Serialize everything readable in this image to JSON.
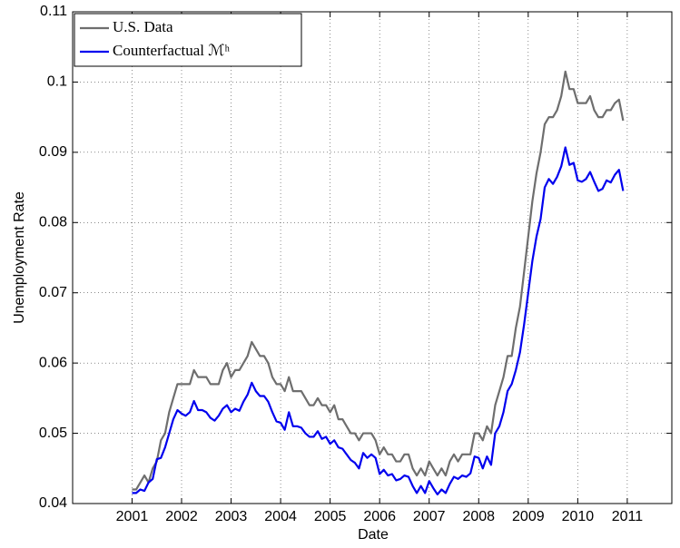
{
  "chart_data": {
    "type": "line",
    "xlabel": "Date",
    "ylabel": "Unemployment Rate",
    "x": [
      2001,
      2001.083,
      2001.167,
      2001.25,
      2001.333,
      2001.417,
      2001.5,
      2001.583,
      2001.667,
      2001.75,
      2001.833,
      2001.917,
      2002,
      2002.083,
      2002.167,
      2002.25,
      2002.333,
      2002.417,
      2002.5,
      2002.583,
      2002.667,
      2002.75,
      2002.833,
      2002.917,
      2003,
      2003.083,
      2003.167,
      2003.25,
      2003.333,
      2003.417,
      2003.5,
      2003.583,
      2003.667,
      2003.75,
      2003.833,
      2003.917,
      2004,
      2004.083,
      2004.167,
      2004.25,
      2004.333,
      2004.417,
      2004.5,
      2004.583,
      2004.667,
      2004.75,
      2004.833,
      2004.917,
      2005,
      2005.083,
      2005.167,
      2005.25,
      2005.333,
      2005.417,
      2005.5,
      2005.583,
      2005.667,
      2005.75,
      2005.833,
      2005.917,
      2006,
      2006.083,
      2006.167,
      2006.25,
      2006.333,
      2006.417,
      2006.5,
      2006.583,
      2006.667,
      2006.75,
      2006.833,
      2006.917,
      2007,
      2007.083,
      2007.167,
      2007.25,
      2007.333,
      2007.417,
      2007.5,
      2007.583,
      2007.667,
      2007.75,
      2007.833,
      2007.917,
      2008,
      2008.083,
      2008.167,
      2008.25,
      2008.333,
      2008.417,
      2008.5,
      2008.583,
      2008.667,
      2008.75,
      2008.833,
      2008.917,
      2009,
      2009.083,
      2009.167,
      2009.25,
      2009.333,
      2009.417,
      2009.5,
      2009.583,
      2009.667,
      2009.75,
      2009.833,
      2009.917,
      2010,
      2010.083,
      2010.167,
      2010.25,
      2010.333,
      2010.417,
      2010.5,
      2010.583,
      2010.667,
      2010.75,
      2010.833,
      2010.917
    ],
    "series": [
      {
        "name": "U.S. Data",
        "color": "#6e6e6e",
        "values": [
          0.042,
          0.042,
          0.043,
          0.044,
          0.043,
          0.045,
          0.046,
          0.049,
          0.05,
          0.053,
          0.055,
          0.057,
          0.057,
          0.057,
          0.057,
          0.059,
          0.058,
          0.058,
          0.058,
          0.057,
          0.057,
          0.057,
          0.059,
          0.06,
          0.058,
          0.059,
          0.059,
          0.06,
          0.061,
          0.063,
          0.062,
          0.061,
          0.061,
          0.06,
          0.058,
          0.057,
          0.057,
          0.056,
          0.058,
          0.056,
          0.056,
          0.056,
          0.055,
          0.054,
          0.054,
          0.055,
          0.054,
          0.054,
          0.053,
          0.054,
          0.052,
          0.052,
          0.051,
          0.05,
          0.05,
          0.049,
          0.05,
          0.05,
          0.05,
          0.049,
          0.047,
          0.048,
          0.047,
          0.047,
          0.046,
          0.046,
          0.047,
          0.047,
          0.045,
          0.044,
          0.045,
          0.044,
          0.046,
          0.045,
          0.044,
          0.045,
          0.044,
          0.046,
          0.047,
          0.046,
          0.047,
          0.047,
          0.047,
          0.05,
          0.05,
          0.049,
          0.051,
          0.05,
          0.054,
          0.056,
          0.058,
          0.061,
          0.061,
          0.065,
          0.068,
          0.073,
          0.078,
          0.083,
          0.087,
          0.09,
          0.094,
          0.095,
          0.095,
          0.096,
          0.098,
          0.1015,
          0.099,
          0.099,
          0.097,
          0.097,
          0.097,
          0.098,
          0.096,
          0.095,
          0.095,
          0.096,
          0.096,
          0.097,
          0.0975,
          0.0945
        ]
      },
      {
        "name": "Counterfactual ℳʰ",
        "color": "#0000ee",
        "values": [
          0.0415,
          0.0415,
          0.042,
          0.0418,
          0.043,
          0.0435,
          0.0463,
          0.0465,
          0.048,
          0.05,
          0.052,
          0.0533,
          0.0528,
          0.0525,
          0.053,
          0.0546,
          0.0533,
          0.0533,
          0.053,
          0.0522,
          0.0518,
          0.0525,
          0.0535,
          0.054,
          0.053,
          0.0535,
          0.0532,
          0.0545,
          0.0555,
          0.0572,
          0.056,
          0.0553,
          0.0553,
          0.0545,
          0.053,
          0.0517,
          0.0515,
          0.0505,
          0.053,
          0.051,
          0.051,
          0.0508,
          0.05,
          0.0495,
          0.0495,
          0.0503,
          0.0492,
          0.0495,
          0.0485,
          0.049,
          0.048,
          0.0478,
          0.047,
          0.0462,
          0.0458,
          0.045,
          0.0472,
          0.0465,
          0.047,
          0.0465,
          0.0442,
          0.0448,
          0.044,
          0.0442,
          0.0433,
          0.0435,
          0.044,
          0.0438,
          0.0425,
          0.0415,
          0.0425,
          0.0415,
          0.0432,
          0.0422,
          0.0413,
          0.042,
          0.0415,
          0.0428,
          0.0438,
          0.0435,
          0.044,
          0.0438,
          0.0443,
          0.0467,
          0.0465,
          0.045,
          0.0467,
          0.0455,
          0.05,
          0.051,
          0.053,
          0.056,
          0.057,
          0.059,
          0.0615,
          0.0655,
          0.07,
          0.0745,
          0.078,
          0.0805,
          0.085,
          0.0862,
          0.0855,
          0.0865,
          0.088,
          0.0907,
          0.0882,
          0.0885,
          0.086,
          0.0858,
          0.0862,
          0.0872,
          0.0858,
          0.0845,
          0.0848,
          0.086,
          0.0857,
          0.0868,
          0.0875,
          0.0845
        ]
      }
    ],
    "xlim": [
      1999.8,
      2011.9
    ],
    "xticks": [
      2001,
      2002,
      2003,
      2004,
      2005,
      2006,
      2007,
      2008,
      2009,
      2010,
      2011
    ],
    "ylim": [
      0.04,
      0.11
    ],
    "yticks": [
      0.04,
      0.05,
      0.06,
      0.07,
      0.08,
      0.09,
      0.1,
      0.11
    ],
    "grid": true,
    "legend": "upper left"
  }
}
